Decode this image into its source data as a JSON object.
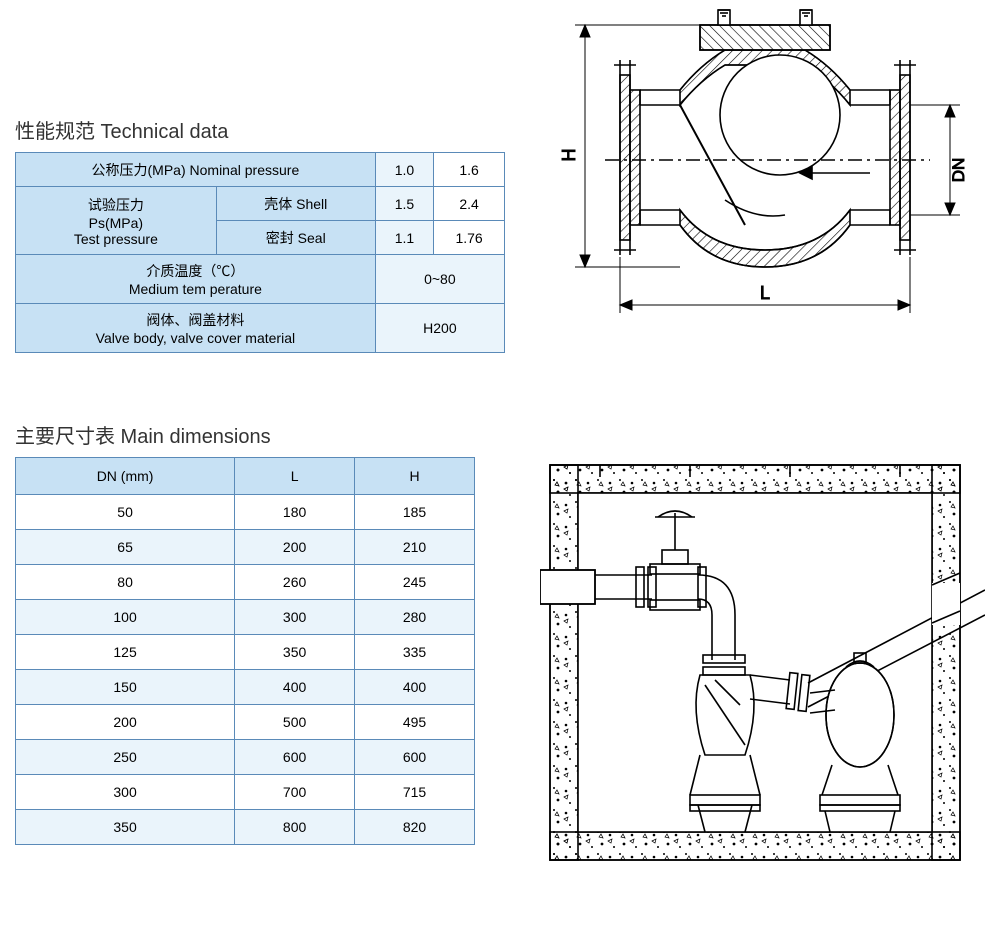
{
  "titles": {
    "technical_data": "性能规范  Technical data",
    "main_dimensions": "主要尺寸表 Main dimensions"
  },
  "tech_table": {
    "nominal_pressure_label": "公称压力(MPa) Nominal pressure",
    "nominal_pressure_v1": "1.0",
    "nominal_pressure_v2": "1.6",
    "test_pressure_label": "试验压力\nPs(MPa)\nTest pressure",
    "shell_label": "壳体 Shell",
    "shell_v1": "1.5",
    "shell_v2": "2.4",
    "seal_label": "密封 Seal",
    "seal_v1": "1.1",
    "seal_v2": "1.76",
    "medium_temp_label": "介质温度（℃）\nMedium tem perature",
    "medium_temp_value": "0~80",
    "material_label": "阀体、阀盖材料\nValve body, valve cover material",
    "material_value": "H200"
  },
  "diagram_labels": {
    "H": "H",
    "DN": "DN",
    "L": "L"
  },
  "dim_table": {
    "columns": [
      "DN (mm)",
      "L",
      "H"
    ],
    "rows": [
      [
        "50",
        "180",
        "185"
      ],
      [
        "65",
        "200",
        "210"
      ],
      [
        "80",
        "260",
        "245"
      ],
      [
        "100",
        "300",
        "280"
      ],
      [
        "125",
        "350",
        "335"
      ],
      [
        "150",
        "400",
        "400"
      ],
      [
        "200",
        "500",
        "495"
      ],
      [
        "250",
        "600",
        "600"
      ],
      [
        "300",
        "700",
        "715"
      ],
      [
        "350",
        "800",
        "820"
      ]
    ]
  },
  "colors": {
    "table_border": "#5a8ab8",
    "header_bg": "#c7e1f4",
    "alt_row_bg": "#eaf4fb",
    "row_bg": "#ffffff",
    "diagram_stroke": "#000000",
    "hatch": "#000000"
  }
}
